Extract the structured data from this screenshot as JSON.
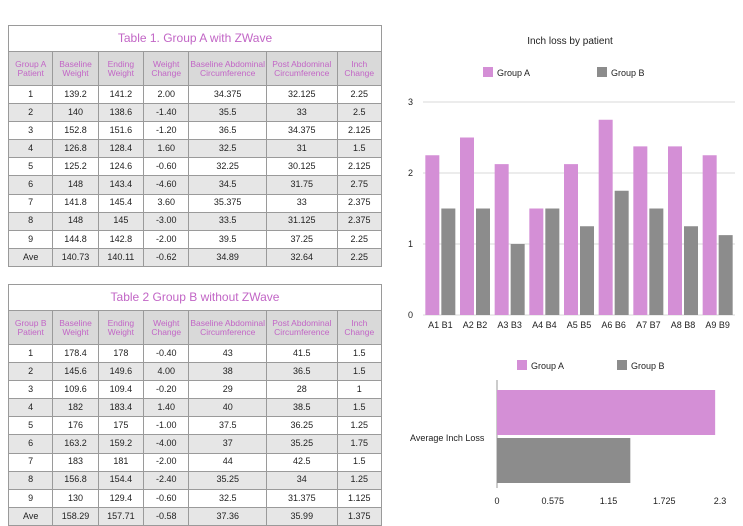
{
  "tableA": {
    "title": "Table 1.  Group A with ZWave",
    "headers": [
      "Group A Patient",
      "Baseline Weight",
      "Ending Weight",
      "Weight Change",
      "Baseline Abdominal Circumference",
      "Post Abdominal Circumference",
      "Inch Change"
    ],
    "rows": [
      [
        "1",
        "139.2",
        "141.2",
        "2.00",
        "34.375",
        "32.125",
        "2.25"
      ],
      [
        "2",
        "140",
        "138.6",
        "-1.40",
        "35.5",
        "33",
        "2.5"
      ],
      [
        "3",
        "152.8",
        "151.6",
        "-1.20",
        "36.5",
        "34.375",
        "2.125"
      ],
      [
        "4",
        "126.8",
        "128.4",
        "1.60",
        "32.5",
        "31",
        "1.5"
      ],
      [
        "5",
        "125.2",
        "124.6",
        "-0.60",
        "32.25",
        "30.125",
        "2.125"
      ],
      [
        "6",
        "148",
        "143.4",
        "-4.60",
        "34.5",
        "31.75",
        "2.75"
      ],
      [
        "7",
        "141.8",
        "145.4",
        "3.60",
        "35.375",
        "33",
        "2.375"
      ],
      [
        "8",
        "148",
        "145",
        "-3.00",
        "33.5",
        "31.125",
        "2.375"
      ],
      [
        "9",
        "144.8",
        "142.8",
        "-2.00",
        "39.5",
        "37.25",
        "2.25"
      ],
      [
        "Ave",
        "140.73",
        "140.11",
        "-0.62",
        "34.89",
        "32.64",
        "2.25"
      ]
    ]
  },
  "tableB": {
    "title": "Table 2 Group B without ZWave",
    "headers": [
      "Group B Patient",
      "Baseline Weight",
      "Ending Weight",
      "Weight Change",
      "Baseline Abdominal Circumference",
      "Post Abdominal Circumference",
      "Inch Change"
    ],
    "rows": [
      [
        "1",
        "178.4",
        "178",
        "-0.40",
        "43",
        "41.5",
        "1.5"
      ],
      [
        "2",
        "145.6",
        "149.6",
        "4.00",
        "38",
        "36.5",
        "1.5"
      ],
      [
        "3",
        "109.6",
        "109.4",
        "-0.20",
        "29",
        "28",
        "1"
      ],
      [
        "4",
        "182",
        "183.4",
        "1.40",
        "40",
        "38.5",
        "1.5"
      ],
      [
        "5",
        "176",
        "175",
        "-1.00",
        "37.5",
        "36.25",
        "1.25"
      ],
      [
        "6",
        "163.2",
        "159.2",
        "-4.00",
        "37",
        "35.25",
        "1.75"
      ],
      [
        "7",
        "183",
        "181",
        "-2.00",
        "44",
        "42.5",
        "1.5"
      ],
      [
        "8",
        "156.8",
        "154.4",
        "-2.40",
        "35.25",
        "34",
        "1.25"
      ],
      [
        "9",
        "130",
        "129.4",
        "-0.60",
        "32.5",
        "31.375",
        "1.125"
      ],
      [
        "Ave",
        "158.29",
        "157.71",
        "-0.58",
        "37.36",
        "35.99",
        "1.375"
      ]
    ]
  },
  "colors": {
    "groupA": "#d48fd6",
    "groupB": "#8c8c8c",
    "title": "#c266c6"
  },
  "chart_data": [
    {
      "type": "bar",
      "title": "Inch loss by patient",
      "categories": [
        "A1 B1",
        "A2 B2",
        "A3 B3",
        "A4 B4",
        "A5 B5",
        "A6 B6",
        "A7 B7",
        "A8 B8",
        "A9 B9"
      ],
      "series": [
        {
          "name": "Group A",
          "values": [
            2.25,
            2.5,
            2.125,
            1.5,
            2.125,
            2.75,
            2.375,
            2.375,
            2.25
          ]
        },
        {
          "name": "Group B",
          "values": [
            1.5,
            1.5,
            1,
            1.5,
            1.25,
            1.75,
            1.5,
            1.25,
            1.125
          ]
        }
      ],
      "ylim": [
        0,
        3
      ],
      "yticks": [
        "0",
        "1",
        "2",
        "3"
      ],
      "legend": "top"
    },
    {
      "type": "bar",
      "orientation": "horizontal",
      "categories": [
        "Average Inch Loss"
      ],
      "series": [
        {
          "name": "Group A",
          "values": [
            2.25
          ]
        },
        {
          "name": "Group B",
          "values": [
            1.375
          ]
        }
      ],
      "xlim": [
        0,
        2.3
      ],
      "xticks": [
        "0",
        "0.575",
        "1.15",
        "1.725",
        "2.3"
      ],
      "legend": "top"
    }
  ]
}
